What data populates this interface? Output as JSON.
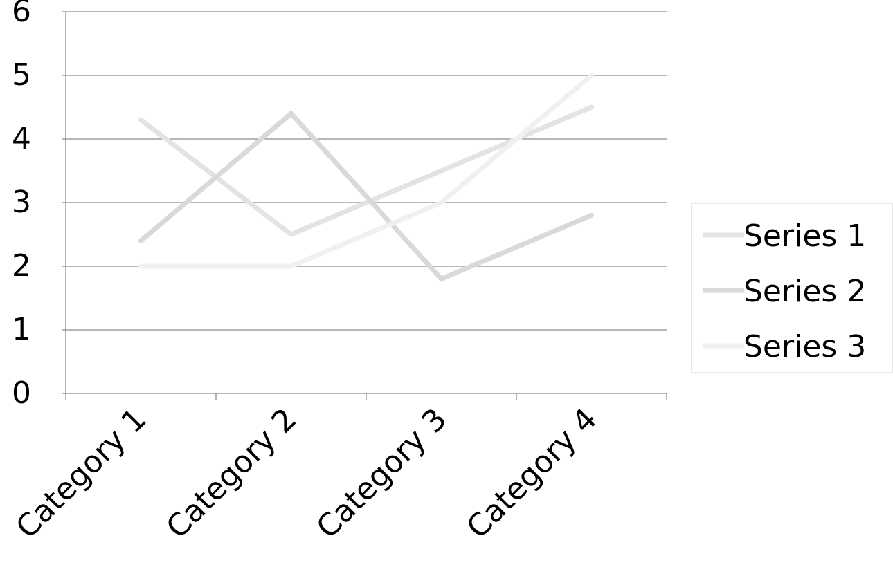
{
  "chart_data": {
    "type": "line",
    "title": "",
    "xlabel": "",
    "ylabel": "",
    "categories": [
      "Category 1",
      "Category 2",
      "Category 3",
      "Category 4"
    ],
    "y_ticks": [
      "0",
      "1",
      "2",
      "3",
      "4",
      "5",
      "6"
    ],
    "ylim": [
      0,
      6
    ],
    "grid": true,
    "legend_position": "right",
    "series": [
      {
        "name": "Series 1",
        "values": [
          4.3,
          2.5,
          3.5,
          4.5
        ],
        "color": "#e3e3e3"
      },
      {
        "name": "Series 2",
        "values": [
          2.4,
          4.4,
          1.8,
          2.8
        ],
        "color": "#d9d9d9"
      },
      {
        "name": "Series 3",
        "values": [
          2.0,
          2.0,
          3.0,
          5.0
        ],
        "color": "#f0f0f0"
      }
    ]
  }
}
